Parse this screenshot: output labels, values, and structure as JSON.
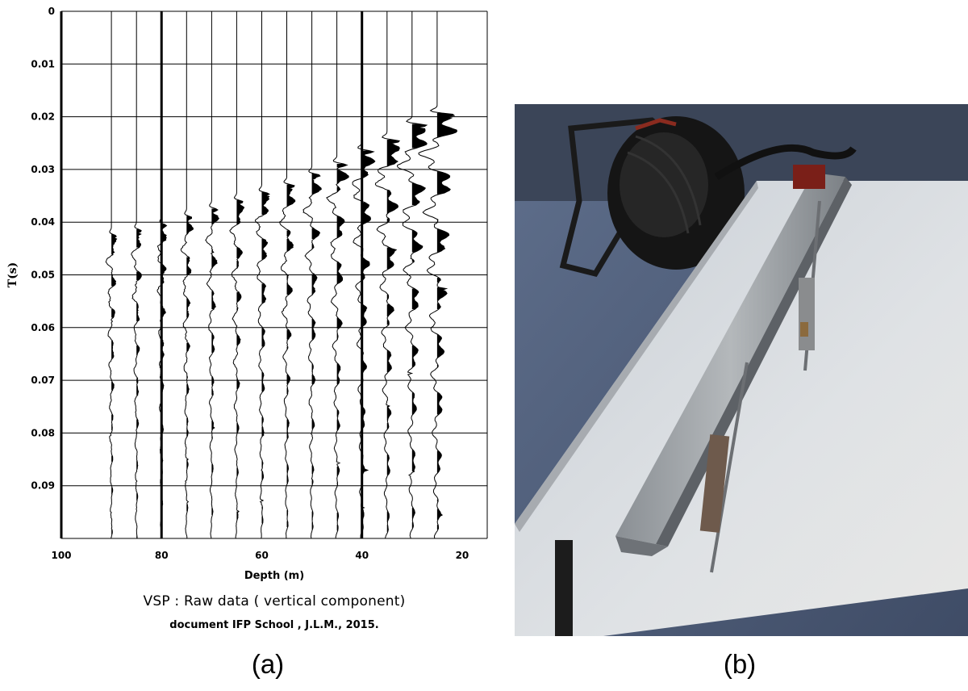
{
  "chart_data": {
    "type": "line",
    "xlabel": "Depth (m)",
    "ylabel": "T(s)",
    "xlim": [
      100,
      15
    ],
    "ylim": [
      0,
      0.1
    ],
    "x_ticks": [
      "100",
      "80",
      "60",
      "40",
      "20"
    ],
    "x_tick_values": [
      100,
      80,
      60,
      40,
      20
    ],
    "y_ticks": [
      "0",
      "0.01",
      "0.02",
      "0.03",
      "0.04",
      "0.05",
      "0.06",
      "0.07",
      "0.08",
      "0.09"
    ],
    "y_tick_values": [
      0,
      0.01,
      0.02,
      0.03,
      0.04,
      0.05,
      0.06,
      0.07,
      0.08,
      0.09
    ],
    "grid": true,
    "traces": [
      {
        "depth": 90,
        "first_arrival_s": 0.0425,
        "amplitude": 1.0
      },
      {
        "depth": 85,
        "first_arrival_s": 0.0415,
        "amplitude": 1.0
      },
      {
        "depth": 80,
        "first_arrival_s": 0.0405,
        "amplitude": 1.0
      },
      {
        "depth": 75,
        "first_arrival_s": 0.039,
        "amplitude": 1.1
      },
      {
        "depth": 70,
        "first_arrival_s": 0.0375,
        "amplitude": 1.2
      },
      {
        "depth": 65,
        "first_arrival_s": 0.036,
        "amplitude": 1.3
      },
      {
        "depth": 60,
        "first_arrival_s": 0.0345,
        "amplitude": 1.5
      },
      {
        "depth": 55,
        "first_arrival_s": 0.033,
        "amplitude": 1.6
      },
      {
        "depth": 50,
        "first_arrival_s": 0.031,
        "amplitude": 1.7
      },
      {
        "depth": 45,
        "first_arrival_s": 0.029,
        "amplitude": 2.0
      },
      {
        "depth": 40,
        "first_arrival_s": 0.0265,
        "amplitude": 2.3
      },
      {
        "depth": 35,
        "first_arrival_s": 0.0245,
        "amplitude": 2.6
      },
      {
        "depth": 30,
        "first_arrival_s": 0.0215,
        "amplitude": 3.0
      },
      {
        "depth": 25,
        "first_arrival_s": 0.0195,
        "amplitude": 3.6
      }
    ],
    "bold_traces": [
      100,
      80,
      40
    ]
  },
  "figure": {
    "title": "VSP : Raw data ( vertical component)",
    "credit": "document IFP School , J.L.M., 2015.",
    "label_a": "(a)",
    "label_b": "(b)"
  }
}
